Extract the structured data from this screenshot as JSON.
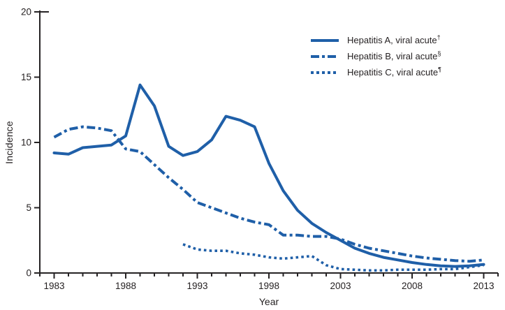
{
  "figure": {
    "background_color": "#ffffff",
    "text_color": "#231f20",
    "axis_color": "#262324",
    "line_color": "#1f5fa8"
  },
  "chart_data": {
    "type": "line",
    "title": "",
    "xlabel": "Year",
    "ylabel": "Incidence",
    "xlim": [
      1982,
      2014
    ],
    "ylim": [
      0,
      20
    ],
    "yticks": [
      0,
      5,
      10,
      15,
      20
    ],
    "xticks_major": [
      1983,
      1988,
      1993,
      1998,
      2003,
      2008,
      2013
    ],
    "xticks_minor_every": 1,
    "grid": false,
    "legend_position": "upper-right-inside",
    "x": [
      1983,
      1984,
      1985,
      1986,
      1987,
      1988,
      1989,
      1990,
      1991,
      1992,
      1993,
      1994,
      1995,
      1996,
      1997,
      1998,
      1999,
      2000,
      2001,
      2002,
      2003,
      2004,
      2005,
      2006,
      2007,
      2008,
      2009,
      2010,
      2011,
      2012,
      2013
    ],
    "series": [
      {
        "name": "Hepatitis A, viral acute",
        "sup": "†",
        "style": "solid",
        "values": [
          9.2,
          9.1,
          9.6,
          9.7,
          9.8,
          10.5,
          14.4,
          12.8,
          9.7,
          9.0,
          9.3,
          10.2,
          12.0,
          11.7,
          11.2,
          8.4,
          6.3,
          4.8,
          3.8,
          3.1,
          2.5,
          1.9,
          1.5,
          1.2,
          1.0,
          0.8,
          0.65,
          0.55,
          0.5,
          0.55,
          0.65
        ]
      },
      {
        "name": "Hepatitis B, viral acute",
        "sup": "§",
        "style": "dashdot",
        "values": [
          10.4,
          11.0,
          11.2,
          11.1,
          10.9,
          9.5,
          9.3,
          8.3,
          7.3,
          6.4,
          5.4,
          5.0,
          4.6,
          4.2,
          3.9,
          3.7,
          2.9,
          2.9,
          2.8,
          2.8,
          2.6,
          2.2,
          1.9,
          1.7,
          1.5,
          1.3,
          1.15,
          1.05,
          0.95,
          0.9,
          1.0
        ]
      },
      {
        "name": "Hepatitis C, viral acute",
        "sup": "¶",
        "style": "dotted",
        "values": [
          null,
          null,
          null,
          null,
          null,
          null,
          null,
          null,
          null,
          2.2,
          1.8,
          1.7,
          1.7,
          1.5,
          1.4,
          1.2,
          1.1,
          1.2,
          1.3,
          0.6,
          0.3,
          0.25,
          0.2,
          0.2,
          0.25,
          0.25,
          0.25,
          0.3,
          0.3,
          0.45,
          0.6
        ]
      }
    ]
  }
}
